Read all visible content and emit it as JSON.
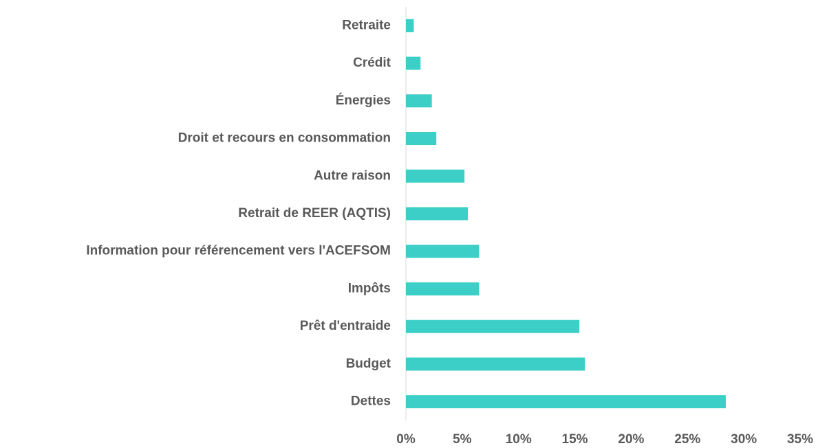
{
  "chart_data": {
    "type": "hbar",
    "categories": [
      "Retraite",
      "Crédit",
      "Énergies",
      "Droit et recours en consommation",
      "Autre raison",
      "Retrait de REER (AQTIS)",
      "Information pour référencement vers l'ACEFSOM",
      "Impôts",
      "Prêt d'entraide",
      "Budget",
      "Dettes"
    ],
    "values": [
      0.7,
      1.3,
      2.3,
      2.7,
      5.2,
      5.5,
      6.5,
      6.5,
      15.4,
      15.9,
      28.4
    ],
    "color": "#3ccfc7",
    "xlim": [
      0,
      35
    ],
    "xticks": [
      {
        "value": 0,
        "label": "0%"
      },
      {
        "value": 5,
        "label": "5%"
      },
      {
        "value": 10,
        "label": "10%"
      },
      {
        "value": 15,
        "label": "15%"
      },
      {
        "value": 20,
        "label": "20%"
      },
      {
        "value": 25,
        "label": "25%"
      },
      {
        "value": 30,
        "label": "30%"
      },
      {
        "value": 35,
        "label": "35%"
      }
    ],
    "grid": false
  }
}
